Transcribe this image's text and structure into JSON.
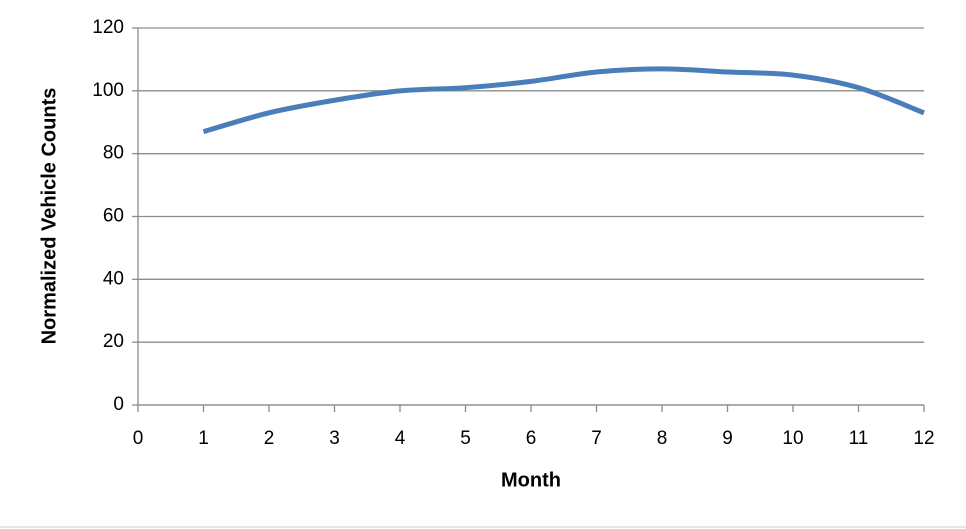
{
  "chart_data": {
    "type": "line",
    "x_label": "Month",
    "y_label": "Normalized Vehicle Counts",
    "x": [
      1,
      2,
      3,
      4,
      5,
      6,
      7,
      8,
      9,
      10,
      11,
      12
    ],
    "series": [
      {
        "color": "#4a7ebb",
        "values": [
          87,
          93,
          97,
          100,
          101,
          103,
          106,
          107,
          106,
          105,
          101,
          93
        ]
      }
    ],
    "xlim": [
      0,
      12
    ],
    "xticks": [
      0,
      1,
      2,
      3,
      4,
      5,
      6,
      7,
      8,
      9,
      10,
      11,
      12
    ],
    "ylim": [
      0,
      120
    ],
    "yticks": [
      0,
      20,
      40,
      60,
      80,
      100,
      120
    ],
    "grid": true,
    "smooth": true
  }
}
